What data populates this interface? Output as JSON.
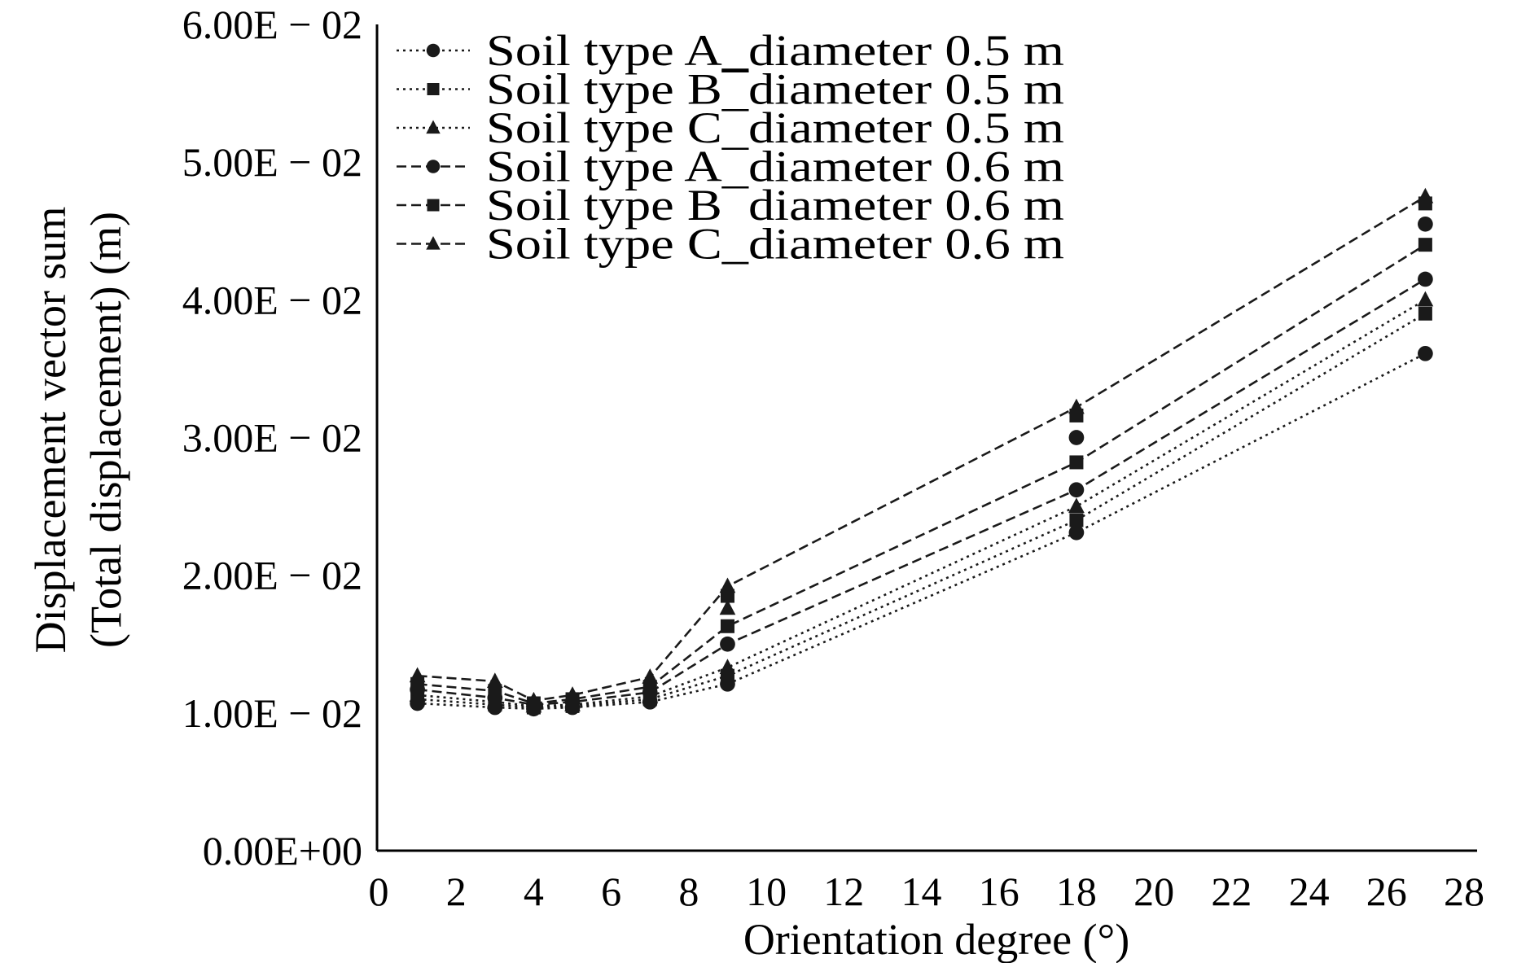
{
  "chart_data": {
    "type": "line",
    "xlabel": "Orientation degree (°)",
    "ylabel_line1": "Displacement vector sum",
    "ylabel_line2": "(Total displacement) (m)",
    "xlim": [
      0,
      28
    ],
    "ylim": [
      0,
      0.06
    ],
    "x_ticks": [
      0,
      2,
      4,
      6,
      8,
      10,
      12,
      14,
      16,
      18,
      20,
      22,
      24,
      26,
      28
    ],
    "x_tick_labels": [
      "0",
      "2",
      "4",
      "6",
      "8",
      "10",
      "12",
      "14",
      "16",
      "18",
      "20",
      "22",
      "24",
      "26",
      "28"
    ],
    "y_ticks": [
      0,
      0.01,
      0.02,
      0.03,
      0.04,
      0.05,
      0.06
    ],
    "y_tick_labels": [
      "0.00E+00",
      "1.00E − 02",
      "2.00E − 02",
      "3.00E − 02",
      "4.00E − 02",
      "5.00E − 02",
      "6.00E − 02"
    ],
    "grid": false,
    "legend_position": "top-left",
    "x": [
      1,
      3,
      4,
      5,
      7,
      9,
      18,
      27
    ],
    "series": [
      {
        "name": "Soil type A_diameter 0.5 m",
        "marker": "circle",
        "dash": "dotted",
        "values": [
          0.0107,
          0.0104,
          0.0103,
          0.0104,
          0.0108,
          0.0121,
          0.0231,
          0.0361
        ]
      },
      {
        "name": "Soil type B¯diameter 0.5 m",
        "marker": "square",
        "dash": "dotted",
        "values": [
          0.011,
          0.0106,
          0.0104,
          0.0105,
          0.011,
          0.0127,
          0.024,
          0.039
        ]
      },
      {
        "name": "Soil type C¯diameter 0.5 m",
        "marker": "triangle",
        "dash": "dotted",
        "values": [
          0.0113,
          0.0108,
          0.0105,
          0.0106,
          0.0112,
          0.0133,
          0.025,
          0.04
        ]
      },
      {
        "name": "Soil type A¯diameter 0.6 m",
        "marker": "circle",
        "dash": "dashed",
        "values": [
          0.0117,
          0.0111,
          0.0106,
          0.0108,
          0.0115,
          0.015,
          0.0262,
          0.0415
        ]
      },
      {
        "name": "Soil type B¯diameter 0.6 m",
        "marker": "square",
        "dash": "dashed",
        "values": [
          0.0121,
          0.0116,
          0.0107,
          0.011,
          0.0119,
          0.0163,
          0.0282,
          0.044
        ]
      },
      {
        "name": "Soil type C_diameter 0.6 m",
        "marker": "triangle",
        "dash": "dashed",
        "values": [
          0.0127,
          0.0123,
          0.0109,
          0.0113,
          0.0126,
          0.0192,
          0.0322,
          0.0475
        ]
      }
    ],
    "extra_marks": [
      {
        "x": 9,
        "y": 0.0176,
        "marker": "triangle"
      },
      {
        "x": 9,
        "y": 0.0185,
        "marker": "square"
      },
      {
        "x": 18,
        "y": 0.03,
        "marker": "circle"
      },
      {
        "x": 18,
        "y": 0.0316,
        "marker": "square"
      },
      {
        "x": 27,
        "y": 0.0455,
        "marker": "circle"
      },
      {
        "x": 27,
        "y": 0.047,
        "marker": "square"
      }
    ],
    "colors": {
      "line": "#1a1a1a",
      "axis": "#000000",
      "background": "#ffffff"
    }
  }
}
